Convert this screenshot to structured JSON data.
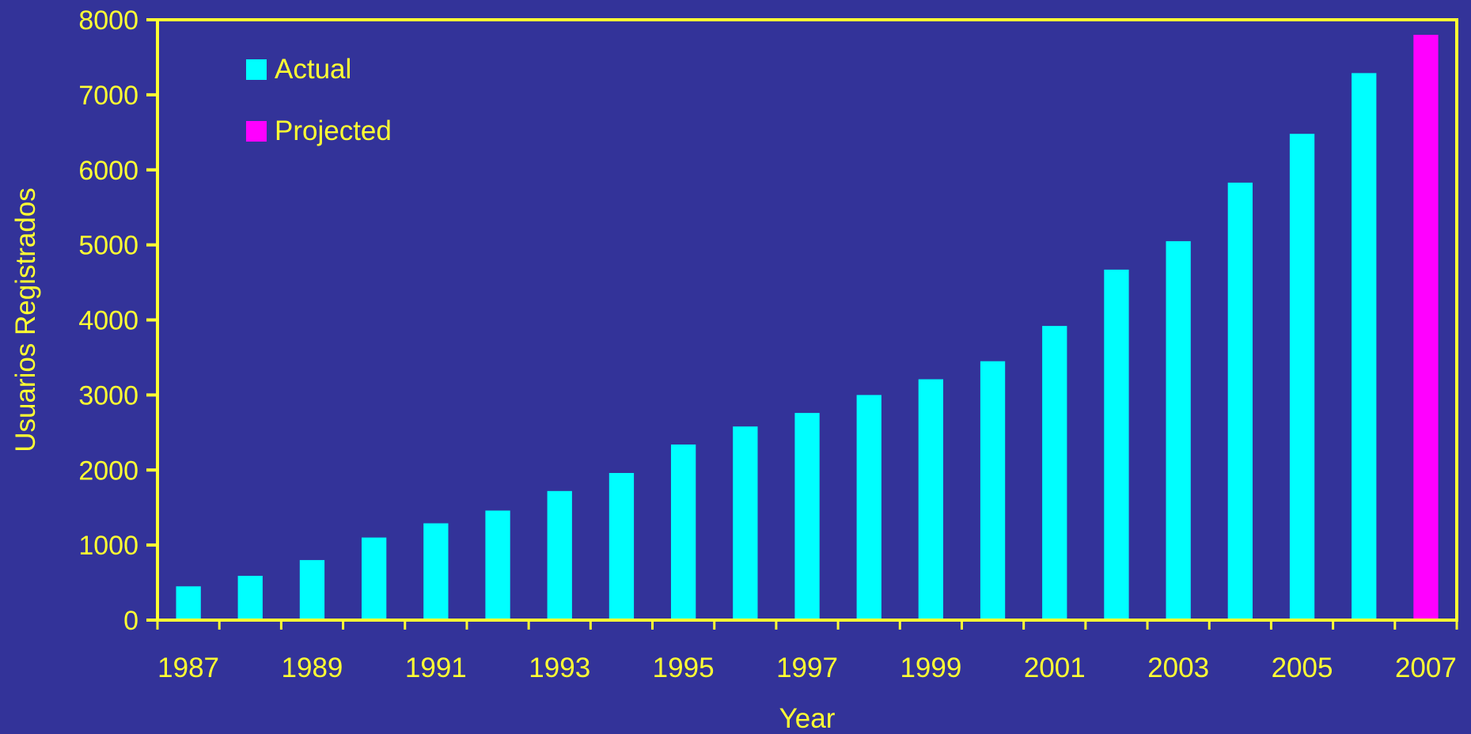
{
  "colors": {
    "background": "#333399",
    "axis": "#ffff33",
    "text": "#ffff33",
    "actual": "#00ffff",
    "projected": "#ff00ff"
  },
  "chart_data": {
    "type": "bar",
    "xlabel": "Year",
    "ylabel": "Usuarios Registrados",
    "ylim": [
      0,
      8000
    ],
    "y_ticks": [
      0,
      1000,
      2000,
      3000,
      4000,
      5000,
      6000,
      7000,
      8000
    ],
    "x_tick_labels": [
      "1987",
      "1989",
      "1991",
      "1993",
      "1995",
      "1997",
      "1999",
      "2001",
      "2003",
      "2005",
      "2007"
    ],
    "grid": false,
    "legend_position": "top-left",
    "categories": [
      "1987",
      "1988",
      "1989",
      "1990",
      "1991",
      "1992",
      "1993",
      "1994",
      "1995",
      "1996",
      "1997",
      "1998",
      "1999",
      "2000",
      "2001",
      "2002",
      "2003",
      "2004",
      "2005",
      "2006",
      "2007"
    ],
    "series": [
      {
        "name": "Actual",
        "color": "#00ffff",
        "values": [
          450,
          590,
          800,
          1100,
          1290,
          1460,
          1720,
          1960,
          2340,
          2580,
          2760,
          3000,
          3210,
          3450,
          3920,
          4670,
          5050,
          5830,
          6480,
          7290,
          null
        ]
      },
      {
        "name": "Projected",
        "color": "#ff00ff",
        "values": [
          null,
          null,
          null,
          null,
          null,
          null,
          null,
          null,
          null,
          null,
          null,
          null,
          null,
          null,
          null,
          null,
          null,
          null,
          null,
          null,
          7800
        ]
      }
    ]
  }
}
